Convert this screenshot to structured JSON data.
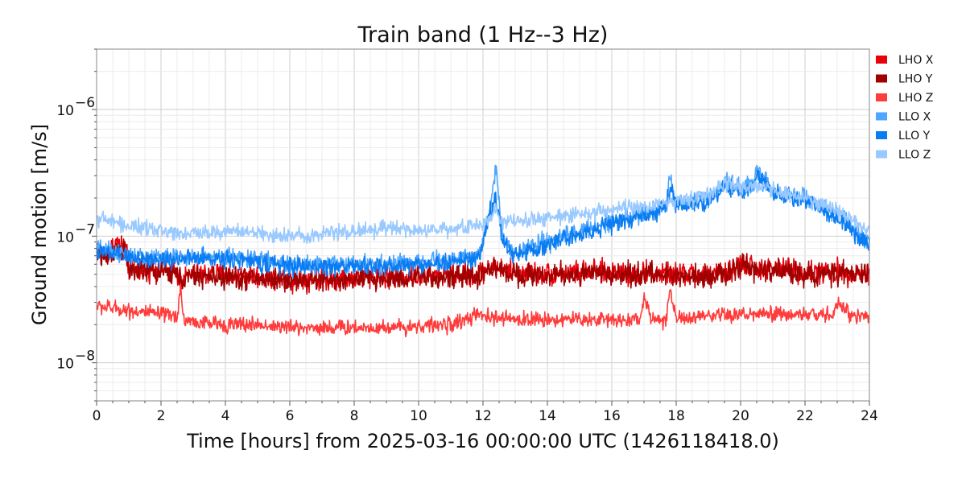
{
  "chart_data": {
    "type": "line",
    "title": "Train band (1 Hz--3 Hz)",
    "xlabel": "Time [hours] from 2025-03-16 00:00:00 UTC (1426118418.0)",
    "ylabel": "Ground motion [m/s]",
    "x_unit": "hours",
    "xlim": [
      0,
      24
    ],
    "xticks": [
      0,
      2,
      4,
      6,
      8,
      10,
      12,
      14,
      16,
      18,
      20,
      22,
      24
    ],
    "ylim": [
      5e-09,
      3e-06
    ],
    "yscale": "log",
    "yticks": [
      {
        "value": 1e-08,
        "base": "10",
        "exp": "−8"
      },
      {
        "value": 1e-07,
        "base": "10",
        "exp": "−7"
      },
      {
        "value": 1e-06,
        "base": "10",
        "exp": "−6"
      }
    ],
    "grid": true,
    "legend_position": "outside right, top",
    "series": [
      {
        "name": "LHO X",
        "color": "#e8000b",
        "x": [
          0,
          0.3,
          0.6,
          0.9,
          1.0,
          1.5,
          2,
          2.5,
          2.6,
          3,
          4,
          5,
          6,
          7,
          8,
          9,
          10,
          11,
          11.9,
          12.2,
          13,
          14,
          15,
          16,
          17,
          18,
          19,
          19.6,
          20,
          20.5,
          21,
          21.5,
          22,
          23,
          24
        ],
        "y": [
          8e-08,
          7e-08,
          9e-08,
          8e-08,
          5.5e-08,
          5.5e-08,
          5.5e-08,
          5.2e-08,
          4.5e-08,
          5e-08,
          5e-08,
          4.8e-08,
          4.6e-08,
          4.6e-08,
          4.7e-08,
          4.8e-08,
          4.8e-08,
          4.9e-08,
          5e-08,
          5.8e-08,
          5.2e-08,
          5e-08,
          5.2e-08,
          5.2e-08,
          5.1e-08,
          5e-08,
          5e-08,
          5e-08,
          6e-08,
          5.6e-08,
          5.4e-08,
          5.6e-08,
          5.2e-08,
          5.2e-08,
          5e-08
        ]
      },
      {
        "name": "LHO Y",
        "color": "#a00000",
        "x": [
          0,
          0.3,
          0.6,
          0.9,
          1.0,
          1.5,
          2,
          2.5,
          2.6,
          3,
          4,
          5,
          6,
          7,
          8,
          9,
          10,
          11,
          11.9,
          12.2,
          13,
          14,
          15,
          16,
          17,
          18,
          19,
          19.6,
          20,
          20.5,
          21,
          21.5,
          22,
          23,
          24
        ],
        "y": [
          7.5e-08,
          6.5e-08,
          8e-08,
          7.5e-08,
          5.3e-08,
          5.3e-08,
          5.2e-08,
          5e-08,
          4.5e-08,
          4.8e-08,
          4.7e-08,
          4.6e-08,
          4.5e-08,
          4.5e-08,
          4.5e-08,
          4.6e-08,
          4.7e-08,
          4.7e-08,
          4.8e-08,
          5.6e-08,
          5e-08,
          4.9e-08,
          5e-08,
          5e-08,
          5e-08,
          4.9e-08,
          4.9e-08,
          5e-08,
          5.8e-08,
          5.4e-08,
          5.2e-08,
          5.4e-08,
          5e-08,
          5e-08,
          5e-08
        ]
      },
      {
        "name": "LHO Z",
        "color": "#ff3b3b",
        "x": [
          0,
          0.5,
          1,
          1.5,
          2,
          2.5,
          2.6,
          2.7,
          3,
          4,
          5,
          6,
          7,
          8,
          9,
          10,
          11,
          11.9,
          12,
          13,
          14,
          15,
          16,
          16.9,
          17,
          17.2,
          17.7,
          17.8,
          18,
          19,
          20,
          21,
          22,
          22.9,
          23,
          23.5,
          24
        ],
        "y": [
          2.8e-08,
          2.7e-08,
          2.6e-08,
          2.5e-08,
          2.4e-08,
          2.3e-08,
          4e-08,
          2.2e-08,
          2.1e-08,
          2e-08,
          2e-08,
          1.9e-08,
          1.9e-08,
          1.9e-08,
          1.9e-08,
          1.95e-08,
          2e-08,
          2.4e-08,
          2.3e-08,
          2.2e-08,
          2.2e-08,
          2.2e-08,
          2.2e-08,
          2.2e-08,
          3.5e-08,
          2.2e-08,
          2.2e-08,
          4e-08,
          2.2e-08,
          2.3e-08,
          2.4e-08,
          2.4e-08,
          2.4e-08,
          2.4e-08,
          2.9e-08,
          2.4e-08,
          2.3e-08
        ]
      },
      {
        "name": "LLO X",
        "color": "#4da6ff",
        "x": [
          0,
          1,
          2,
          3,
          4,
          5,
          6,
          7,
          8,
          9,
          10,
          11,
          11.9,
          12.2,
          12.4,
          12.6,
          13,
          14,
          15,
          16,
          17,
          17.7,
          17.8,
          18,
          19,
          19.6,
          20,
          20.4,
          20.5,
          21,
          22,
          23,
          24
        ],
        "y": [
          8e-08,
          7e-08,
          6.8e-08,
          6.8e-08,
          7e-08,
          6.5e-08,
          6e-08,
          6e-08,
          6e-08,
          6e-08,
          6.2e-08,
          6.5e-08,
          7e-08,
          1.6e-07,
          3.5e-07,
          1e-07,
          7.5e-08,
          9e-08,
          1.1e-07,
          1.3e-07,
          1.5e-07,
          1.8e-07,
          3e-07,
          1.8e-07,
          2e-07,
          2.6e-07,
          2.5e-07,
          2.6e-07,
          3.5e-07,
          2.3e-07,
          2e-07,
          1.5e-07,
          9e-08
        ]
      },
      {
        "name": "LLO Y",
        "color": "#0a7cf2",
        "x": [
          0,
          1,
          2,
          3,
          4,
          5,
          6,
          7,
          8,
          9,
          10,
          11,
          11.9,
          12.2,
          12.4,
          12.6,
          13,
          14,
          15,
          16,
          17,
          17.7,
          17.8,
          18,
          19,
          19.6,
          20,
          20.4,
          20.5,
          21,
          22,
          23,
          24
        ],
        "y": [
          7.5e-08,
          6.8e-08,
          6.6e-08,
          6.6e-08,
          6.7e-08,
          6.2e-08,
          5.8e-08,
          5.8e-08,
          5.8e-08,
          5.8e-08,
          6e-08,
          6.2e-08,
          6.8e-08,
          1.5e-07,
          2e-07,
          9e-08,
          7e-08,
          8.5e-08,
          1.05e-07,
          1.25e-07,
          1.45e-07,
          1.7e-07,
          2.5e-07,
          1.7e-07,
          1.9e-07,
          2.4e-07,
          2.3e-07,
          2.4e-07,
          3e-07,
          2.2e-07,
          1.9e-07,
          1.4e-07,
          8.5e-08
        ]
      },
      {
        "name": "LLO Z",
        "color": "#99c9ff",
        "x": [
          0,
          0.5,
          1,
          2,
          3,
          4,
          5,
          6,
          7,
          8,
          9,
          10,
          11,
          11.9,
          12.2,
          12.4,
          12.6,
          13,
          14,
          15,
          16,
          17,
          18,
          19,
          19.6,
          20,
          20.5,
          21,
          22,
          23,
          24
        ],
        "y": [
          1.4e-07,
          1.3e-07,
          1.2e-07,
          1.1e-07,
          1.05e-07,
          1.1e-07,
          1.05e-07,
          1e-07,
          1.05e-07,
          1.1e-07,
          1.15e-07,
          1.1e-07,
          1.15e-07,
          1.2e-07,
          1.4e-07,
          1.6e-07,
          1.3e-07,
          1.3e-07,
          1.4e-07,
          1.5e-07,
          1.6e-07,
          1.7e-07,
          1.9e-07,
          2.1e-07,
          2.7e-07,
          2.4e-07,
          2.5e-07,
          2.3e-07,
          2e-07,
          1.6e-07,
          1.1e-07
        ]
      }
    ]
  }
}
